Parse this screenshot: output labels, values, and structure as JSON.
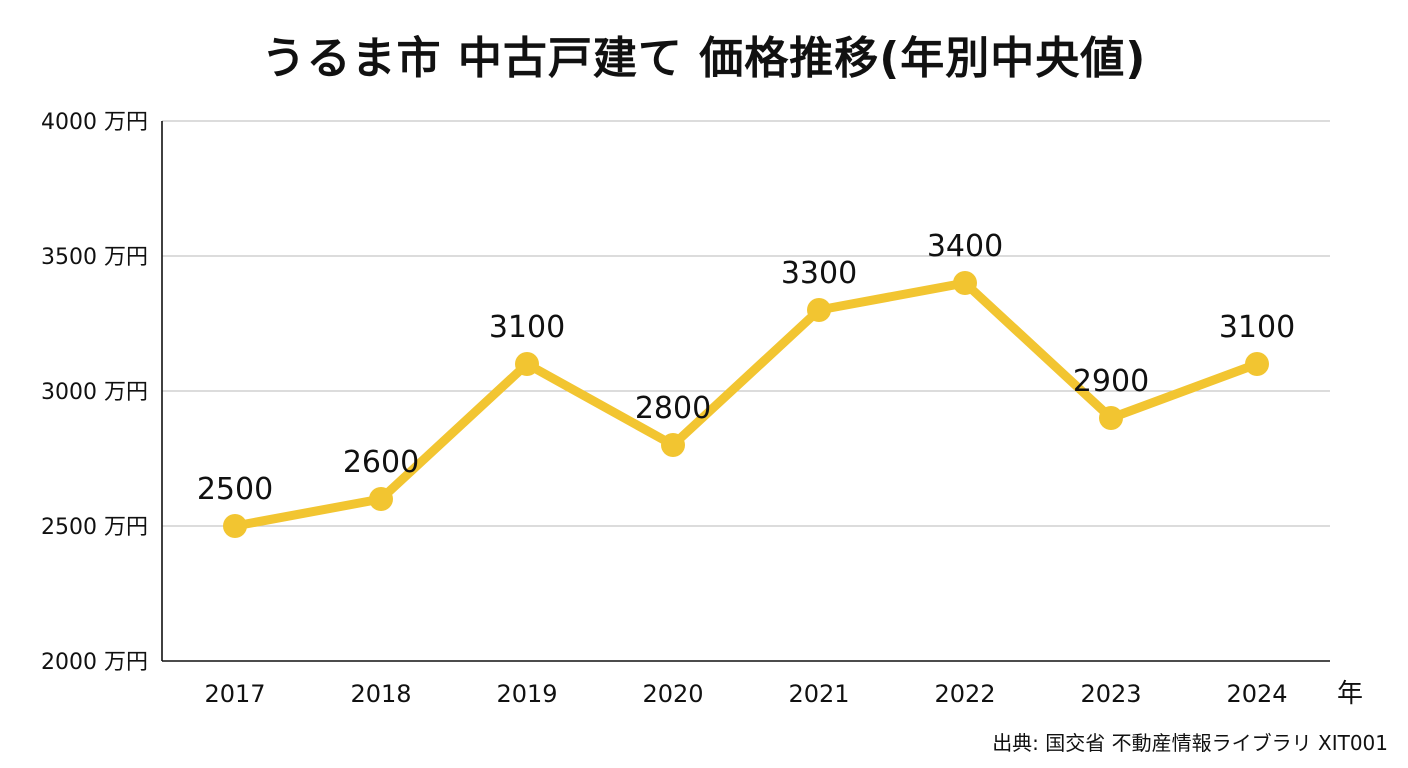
{
  "colors": {
    "line": "#F2C531",
    "grid": "#C8C8C8",
    "axis": "#111111",
    "text": "#111111"
  },
  "source": "出典: 国交省 不動産情報ライブラリ XIT001",
  "chart_data": {
    "type": "line",
    "title": "うるま市 中古戸建て 価格推移(年別中央値)",
    "xlabel": "年",
    "ylabel": "",
    "y_unit": "万円",
    "ylim": [
      2000,
      4000
    ],
    "yticks": [
      2000,
      2500,
      3000,
      3500,
      4000
    ],
    "grid": true,
    "categories": [
      "2017",
      "2018",
      "2019",
      "2020",
      "2021",
      "2022",
      "2023",
      "2024"
    ],
    "series": [
      {
        "values": [
          2500,
          2600,
          3100,
          2800,
          3300,
          3400,
          2900,
          3100
        ],
        "data_labels": [
          "2500",
          "2600",
          "3100",
          "2800",
          "3300",
          "3400",
          "2900",
          "3100"
        ]
      }
    ]
  }
}
